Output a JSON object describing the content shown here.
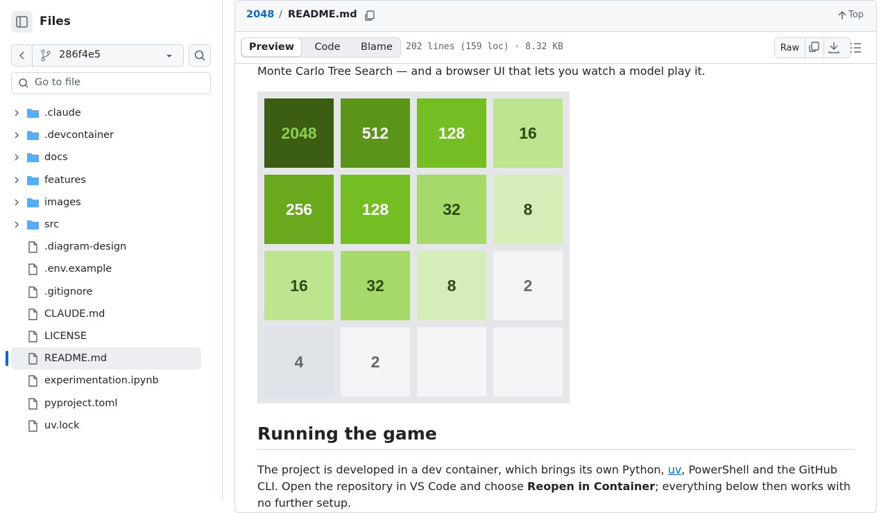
{
  "sidebar": {
    "title": "Files",
    "branch": "286f4e5",
    "search_placeholder": "Go to file",
    "tree": [
      {
        "name": ".claude",
        "kind": "folder"
      },
      {
        "name": ".devcontainer",
        "kind": "folder"
      },
      {
        "name": "docs",
        "kind": "folder"
      },
      {
        "name": "features",
        "kind": "folder"
      },
      {
        "name": "images",
        "kind": "folder"
      },
      {
        "name": "src",
        "kind": "folder"
      },
      {
        "name": ".diagram-design",
        "kind": "file"
      },
      {
        "name": ".env.example",
        "kind": "file"
      },
      {
        "name": ".gitignore",
        "kind": "file"
      },
      {
        "name": "CLAUDE.md",
        "kind": "file"
      },
      {
        "name": "LICENSE",
        "kind": "file"
      },
      {
        "name": "README.md",
        "kind": "file",
        "selected": true
      },
      {
        "name": "experimentation.ipynb",
        "kind": "file"
      },
      {
        "name": "pyproject.toml",
        "kind": "file"
      },
      {
        "name": "uv.lock",
        "kind": "file"
      }
    ]
  },
  "header": {
    "repo": "2048",
    "separator": "/",
    "file": "README.md",
    "top": "Top"
  },
  "toolbar": {
    "tabs": [
      "Preview",
      "Code",
      "Blame"
    ],
    "info": "202 lines (159 loc) · 8.32 KB",
    "raw": "Raw"
  },
  "content": {
    "intro": "Monte Carlo Tree Search — and a browser UI that lets you watch a model play it.",
    "board": [
      [
        2048,
        512,
        128,
        16
      ],
      [
        256,
        128,
        32,
        8
      ],
      [
        16,
        32,
        8,
        2
      ],
      [
        4,
        2,
        null,
        null
      ]
    ],
    "heading": "Running the game",
    "paragraph": [
      "The project is developed in a dev container, which brings its own Python, ",
      "uv",
      ", PowerShell and the GitHub CLI. Open the repository in VS Code and choose ",
      "Reopen in Container",
      "; everything below then works with no further setup."
    ]
  }
}
